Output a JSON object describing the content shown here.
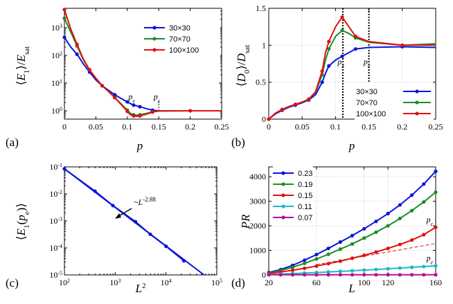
{
  "chart_data": [
    {
      "panel_label": "(a)",
      "type": "line",
      "xlabel": "p",
      "ylabel_parts": [
        "⟨",
        "E",
        "1",
        "⟩/",
        "E",
        "sat"
      ],
      "xscale": "linear",
      "yscale": "log",
      "xlim": [
        0,
        0.25
      ],
      "ylim": [
        0.5,
        5000
      ],
      "xticks": [
        0,
        0.05,
        0.1,
        0.15,
        0.2,
        0.25
      ],
      "xtick_labels": [
        "0",
        "0.05",
        "0.1",
        "0.15",
        "0.2",
        "0.25"
      ],
      "yticks": [
        1,
        10,
        100,
        1000
      ],
      "ytick_labels": [
        [
          "10",
          "0"
        ],
        [
          "10",
          "1"
        ],
        [
          "10",
          "2"
        ],
        [
          "10",
          "3"
        ]
      ],
      "grid": false,
      "legend_position": "upper-right",
      "annotations": [
        {
          "text": "p",
          "sub": "e",
          "x": 0.107,
          "y": 2.6
        },
        {
          "text": "p",
          "sub": "c",
          "x": 0.147,
          "y": 2.6
        }
      ],
      "vline": {
        "x": 0.15,
        "y_from": 1,
        "y_to": 2.2
      },
      "series": [
        {
          "name": "30×30",
          "color": "#0a14dc",
          "markers": true,
          "x": [
            0,
            0.01,
            0.02,
            0.03,
            0.04,
            0.05,
            0.06,
            0.07,
            0.08,
            0.09,
            0.1,
            0.105,
            0.11,
            0.115,
            0.12,
            0.13,
            0.14,
            0.15,
            0.2,
            0.25
          ],
          "y": [
            450,
            200,
            110,
            50,
            25,
            13,
            8,
            5.5,
            3.8,
            2.8,
            2.1,
            1.8,
            1.6,
            1.5,
            1.4,
            1.2,
            1.05,
            1.0,
            1.0,
            1.0
          ]
        },
        {
          "name": "70×70",
          "color": "#1c8c24",
          "markers": true,
          "x": [
            0,
            0.01,
            0.02,
            0.03,
            0.04,
            0.05,
            0.06,
            0.07,
            0.08,
            0.09,
            0.1,
            0.105,
            0.11,
            0.115,
            0.12,
            0.13,
            0.14,
            0.15,
            0.2,
            0.25
          ],
          "y": [
            2200,
            700,
            220,
            70,
            30,
            15,
            8,
            5,
            3,
            1.8,
            1.05,
            0.8,
            0.72,
            0.7,
            0.72,
            0.8,
            0.92,
            0.98,
            1.0,
            1.0
          ]
        },
        {
          "name": "100×100",
          "color": "#e01010",
          "markers": true,
          "x": [
            0,
            0.01,
            0.02,
            0.03,
            0.04,
            0.05,
            0.06,
            0.07,
            0.08,
            0.09,
            0.1,
            0.105,
            0.11,
            0.115,
            0.12,
            0.13,
            0.14,
            0.15,
            0.2,
            0.25
          ],
          "y": [
            4500,
            900,
            250,
            75,
            30,
            15,
            8,
            5,
            3,
            1.7,
            0.95,
            0.72,
            0.65,
            0.63,
            0.65,
            0.75,
            0.9,
            0.98,
            1.0,
            1.0
          ]
        }
      ]
    },
    {
      "panel_label": "(b)",
      "type": "line",
      "xlabel": "p",
      "ylabel_parts": [
        "⟨",
        "D",
        "0",
        "⟩/",
        "D",
        "sat"
      ],
      "xscale": "linear",
      "yscale": "linear",
      "xlim": [
        0,
        0.25
      ],
      "ylim": [
        0,
        1.5
      ],
      "xticks": [
        0,
        0.05,
        0.1,
        0.15,
        0.2,
        0.25
      ],
      "xtick_labels": [
        "0",
        "0.05",
        "0.1",
        "0.15",
        "0.2",
        "0.25"
      ],
      "yticks": [
        0,
        0.5,
        1,
        1.5
      ],
      "ytick_labels": [
        "0",
        "0.5",
        "1",
        "1.5"
      ],
      "grid": true,
      "legend_position": "lower-right",
      "annotations": [
        {
          "text": "p",
          "sub": "e",
          "x": 0.108,
          "y": 0.74
        },
        {
          "text": "p",
          "sub": "c",
          "x": 0.147,
          "y": 0.74
        }
      ],
      "vlines": [
        0.111,
        0.15
      ],
      "series": [
        {
          "name": "30×30",
          "color": "#0a14dc",
          "markers": true,
          "x": [
            0,
            0.01,
            0.02,
            0.03,
            0.04,
            0.05,
            0.06,
            0.07,
            0.08,
            0.085,
            0.09,
            0.1,
            0.11,
            0.12,
            0.13,
            0.15,
            0.2,
            0.25
          ],
          "y": [
            0,
            0.07,
            0.12,
            0.16,
            0.19,
            0.22,
            0.26,
            0.33,
            0.5,
            0.62,
            0.72,
            0.8,
            0.85,
            0.9,
            0.95,
            0.97,
            0.98,
            0.97
          ]
        },
        {
          "name": "70×70",
          "color": "#1c8c24",
          "markers": true,
          "x": [
            0,
            0.01,
            0.02,
            0.03,
            0.04,
            0.05,
            0.06,
            0.07,
            0.08,
            0.085,
            0.09,
            0.1,
            0.11,
            0.12,
            0.13,
            0.15,
            0.2,
            0.25
          ],
          "y": [
            0,
            0.08,
            0.13,
            0.17,
            0.2,
            0.23,
            0.27,
            0.36,
            0.6,
            0.8,
            0.95,
            1.12,
            1.2,
            1.16,
            1.1,
            1.04,
            1.0,
            1.02
          ]
        },
        {
          "name": "100×100",
          "color": "#e01010",
          "markers": true,
          "x": [
            0,
            0.01,
            0.02,
            0.03,
            0.04,
            0.05,
            0.06,
            0.07,
            0.08,
            0.085,
            0.09,
            0.1,
            0.11,
            0.12,
            0.13,
            0.15,
            0.2,
            0.25
          ],
          "y": [
            0,
            0.08,
            0.13,
            0.17,
            0.2,
            0.23,
            0.27,
            0.37,
            0.65,
            0.9,
            1.05,
            1.25,
            1.38,
            1.25,
            1.12,
            1.05,
            1.0,
            1.0
          ]
        }
      ]
    },
    {
      "panel_label": "(c)",
      "type": "line",
      "xlabel": "L",
      "xlabel_sup": "2",
      "ylabel_parts": [
        "⟨",
        "E",
        "1",
        "(",
        "p",
        "e",
        ")⟩"
      ],
      "xscale": "log",
      "yscale": "log",
      "xlim": [
        100,
        100000
      ],
      "ylim": [
        1e-05,
        0.1
      ],
      "xticks": [
        100,
        1000,
        10000,
        100000
      ],
      "xtick_labels": [
        [
          "10",
          "2"
        ],
        [
          "10",
          "3"
        ],
        [
          "10",
          "4"
        ],
        [
          "10",
          "5"
        ]
      ],
      "yticks": [
        1e-05,
        0.0001,
        0.001,
        0.01,
        0.1
      ],
      "ytick_labels": [
        [
          "10",
          "-5"
        ],
        [
          "10",
          "-4"
        ],
        [
          "10",
          "-3"
        ],
        [
          "10",
          "-2"
        ],
        [
          "10",
          "-1"
        ]
      ],
      "grid": false,
      "annotation": {
        "text": "~L",
        "sup": "-2.88"
      },
      "series": [
        {
          "name": "",
          "color": "#0a14dc",
          "markers": true,
          "x": [
            100,
            400,
            900,
            2500,
            4900,
            10000,
            22500
          ],
          "y": [
            0.085,
            0.0126,
            0.0037,
            0.00094,
            0.00032,
            0.000115,
            3.33e-05
          ]
        }
      ],
      "fit": {
        "x": [
          100,
          56000
        ],
        "y": [
          0.085,
          1e-05
        ]
      }
    },
    {
      "panel_label": "(d)",
      "type": "line",
      "xlabel": "L",
      "ylabel": "PR",
      "xscale": "linear",
      "yscale": "linear",
      "xlim": [
        20,
        160
      ],
      "ylim": [
        0,
        4400
      ],
      "xticks": [
        20,
        60,
        100,
        120,
        160
      ],
      "xtick_labels": [
        "20",
        "60",
        "100",
        "120",
        "160"
      ],
      "yticks": [
        0,
        1000,
        2000,
        3000,
        4000
      ],
      "ytick_labels": [
        "0",
        "1000",
        "2000",
        "3000",
        "4000"
      ],
      "grid": true,
      "legend_position": "upper-left",
      "annotations": [
        {
          "text": "p",
          "sub": "c",
          "x": 155,
          "y": 2150
        },
        {
          "text": "p",
          "sub": "e",
          "x": 155,
          "y": 580
        }
      ],
      "dashed_line": {
        "x": [
          60,
          160
        ],
        "y": [
          420,
          1280
        ],
        "color": "#e01010"
      },
      "series": [
        {
          "name": "0.23",
          "color": "#0a14dc",
          "markers": true,
          "x": [
            20,
            30,
            40,
            50,
            60,
            70,
            80,
            90,
            100,
            110,
            120,
            130,
            140,
            150,
            160
          ],
          "y": [
            100,
            220,
            390,
            600,
            830,
            1080,
            1340,
            1600,
            1880,
            2180,
            2500,
            2850,
            3250,
            3700,
            4220
          ]
        },
        {
          "name": "0.19",
          "color": "#1c8c24",
          "markers": true,
          "x": [
            20,
            30,
            40,
            50,
            60,
            70,
            80,
            90,
            100,
            110,
            120,
            130,
            140,
            150,
            160
          ],
          "y": [
            80,
            180,
            310,
            470,
            650,
            840,
            1050,
            1260,
            1500,
            1740,
            2000,
            2300,
            2620,
            2970,
            3370
          ]
        },
        {
          "name": "0.15",
          "color": "#e01010",
          "markers": true,
          "x": [
            20,
            30,
            40,
            50,
            60,
            70,
            80,
            90,
            100,
            110,
            120,
            130,
            140,
            150,
            160
          ],
          "y": [
            60,
            120,
            190,
            270,
            360,
            460,
            560,
            680,
            800,
            930,
            1080,
            1240,
            1420,
            1640,
            1940
          ]
        },
        {
          "name": "0.11",
          "color": "#20b8c0",
          "markers": true,
          "x": [
            20,
            30,
            40,
            50,
            60,
            70,
            80,
            90,
            100,
            110,
            120,
            130,
            140,
            150,
            160
          ],
          "y": [
            20,
            35,
            55,
            75,
            95,
            120,
            145,
            170,
            195,
            220,
            250,
            280,
            310,
            340,
            370
          ]
        },
        {
          "name": "0.07",
          "color": "#b0109a",
          "markers": true,
          "x": [
            20,
            30,
            40,
            50,
            60,
            70,
            80,
            90,
            100,
            110,
            120,
            130,
            140,
            150,
            160
          ],
          "y": [
            5,
            5,
            5,
            5,
            5,
            5,
            5,
            5,
            5,
            5,
            5,
            5,
            5,
            5,
            5
          ]
        }
      ]
    }
  ]
}
